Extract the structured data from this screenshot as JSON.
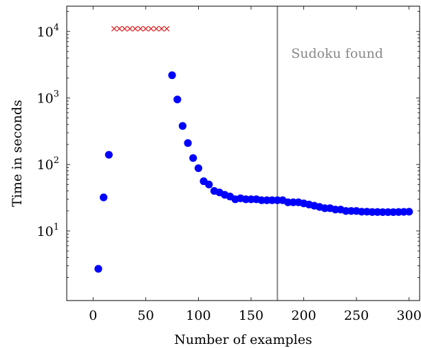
{
  "chart_data": {
    "type": "scatter",
    "xlabel": "Number of examples",
    "ylabel": "Time in seconds",
    "xlim": [
      -25,
      310
    ],
    "ylim": [
      0.9,
      24000
    ],
    "yscale": "log",
    "xticks": [
      0,
      50,
      100,
      150,
      200,
      250,
      300
    ],
    "yticks": [
      {
        "value": 10,
        "base": "10",
        "exp": "1"
      },
      {
        "value": 100,
        "base": "10",
        "exp": "2"
      },
      {
        "value": 1000,
        "base": "10",
        "exp": "3"
      },
      {
        "value": 10000,
        "base": "10",
        "exp": "4"
      }
    ],
    "grid": false,
    "series": [
      {
        "marker": "circle",
        "color": "#0000ff",
        "x": [
          5,
          10,
          15,
          75,
          80,
          85,
          90,
          95,
          100,
          105,
          110,
          115,
          120,
          125,
          130,
          135,
          140,
          145,
          150,
          155,
          160,
          165,
          170,
          175,
          180,
          185,
          190,
          195,
          200,
          205,
          210,
          215,
          220,
          225,
          230,
          235,
          240,
          245,
          250,
          255,
          260,
          265,
          270,
          275,
          280,
          285,
          290,
          295,
          300
        ],
        "y": [
          2.7,
          32,
          140,
          2200,
          950,
          380,
          210,
          125,
          88,
          56,
          50,
          40,
          38,
          35,
          33,
          30,
          31,
          30,
          30,
          30,
          29,
          29,
          29,
          29,
          29,
          27,
          27,
          27,
          26,
          25,
          24,
          23,
          22,
          22,
          21,
          21,
          20,
          20,
          20,
          19.5,
          19.5,
          19.3,
          19.3,
          19.2,
          19.2,
          19.2,
          19.3,
          19.4,
          19.5
        ]
      },
      {
        "marker": "x",
        "color": "#dd0000",
        "x": [
          20,
          25,
          30,
          35,
          40,
          45,
          50,
          55,
          60,
          65,
          70
        ],
        "y": [
          11000,
          11000,
          11000,
          11000,
          11000,
          11000,
          11000,
          11000,
          11000,
          11000,
          11000
        ]
      }
    ],
    "vline": {
      "x": 175,
      "color": "#888888"
    },
    "annotations": [
      {
        "text": "Sudoku found",
        "color": "#888888"
      }
    ]
  }
}
